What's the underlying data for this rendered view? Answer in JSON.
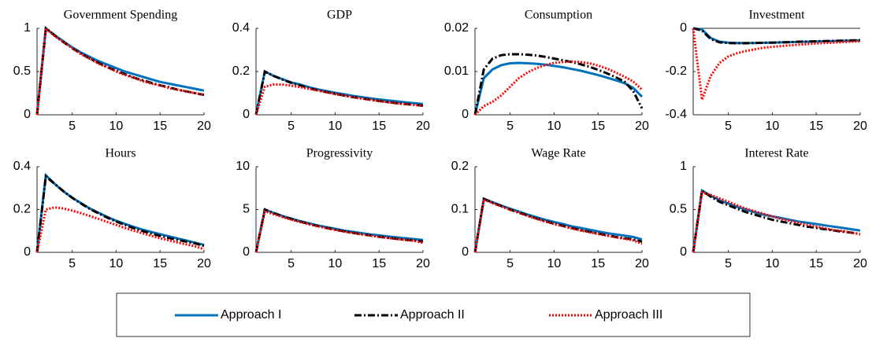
{
  "chart_data": [
    {
      "type": "line",
      "title": "Government Spending",
      "x": [
        1,
        2,
        3,
        4,
        5,
        6,
        7,
        8,
        9,
        10,
        11,
        12,
        13,
        14,
        15,
        16,
        17,
        18,
        19,
        20
      ],
      "xlim": [
        1,
        20
      ],
      "xticks": [
        5,
        10,
        15,
        20
      ],
      "ylim": [
        0,
        1
      ],
      "yticks": [
        0,
        0.5,
        1
      ],
      "series": [
        {
          "name": "Approach I",
          "color": "#0072bd",
          "dash": "solid",
          "values": [
            0,
            1,
            0.92,
            0.85,
            0.78,
            0.72,
            0.67,
            0.62,
            0.58,
            0.54,
            0.5,
            0.47,
            0.44,
            0.41,
            0.38,
            0.36,
            0.34,
            0.32,
            0.3,
            0.28
          ]
        },
        {
          "name": "Approach II",
          "color": "#000000",
          "dash": "dashdot",
          "values": [
            0,
            1,
            0.92,
            0.84,
            0.77,
            0.71,
            0.65,
            0.6,
            0.55,
            0.51,
            0.47,
            0.43,
            0.4,
            0.37,
            0.34,
            0.32,
            0.29,
            0.27,
            0.25,
            0.23
          ]
        },
        {
          "name": "Approach III",
          "color": "#ff0000",
          "dash": "dotted",
          "values": [
            0,
            1,
            0.91,
            0.84,
            0.77,
            0.7,
            0.65,
            0.59,
            0.55,
            0.5,
            0.46,
            0.43,
            0.39,
            0.36,
            0.34,
            0.31,
            0.29,
            0.27,
            0.25,
            0.23
          ]
        }
      ]
    },
    {
      "type": "line",
      "title": "GDP",
      "x": [
        1,
        2,
        3,
        4,
        5,
        6,
        7,
        8,
        9,
        10,
        11,
        12,
        13,
        14,
        15,
        16,
        17,
        18,
        19,
        20
      ],
      "xlim": [
        1,
        20
      ],
      "xticks": [
        5,
        10,
        15,
        20
      ],
      "ylim": [
        0,
        0.4
      ],
      "yticks": [
        0,
        0.2,
        0.4
      ],
      "series": [
        {
          "color": "#0072bd",
          "dash": "solid",
          "values": [
            0,
            0.2,
            0.18,
            0.165,
            0.15,
            0.14,
            0.128,
            0.118,
            0.11,
            0.102,
            0.095,
            0.088,
            0.082,
            0.076,
            0.071,
            0.066,
            0.062,
            0.058,
            0.054,
            0.05
          ]
        },
        {
          "color": "#000000",
          "dash": "dashdot",
          "values": [
            0,
            0.2,
            0.18,
            0.163,
            0.148,
            0.136,
            0.124,
            0.114,
            0.105,
            0.097,
            0.089,
            0.082,
            0.076,
            0.07,
            0.064,
            0.059,
            0.054,
            0.05,
            0.046,
            0.042
          ]
        },
        {
          "color": "#ff0000",
          "dash": "dotted",
          "values": [
            0,
            0.13,
            0.14,
            0.14,
            0.135,
            0.128,
            0.12,
            0.112,
            0.104,
            0.096,
            0.089,
            0.082,
            0.075,
            0.069,
            0.064,
            0.058,
            0.053,
            0.049,
            0.045,
            0.041
          ]
        }
      ]
    },
    {
      "type": "line",
      "title": "Consumption",
      "x": [
        1,
        2,
        3,
        4,
        5,
        6,
        7,
        8,
        9,
        10,
        11,
        12,
        13,
        14,
        15,
        16,
        17,
        18,
        19,
        20
      ],
      "xlim": [
        1,
        20
      ],
      "xticks": [
        5,
        10,
        15,
        20
      ],
      "ylim": [
        0,
        0.02
      ],
      "yticks": [
        0,
        0.01,
        0.02
      ],
      "series": [
        {
          "color": "#0072bd",
          "dash": "solid",
          "values": [
            0,
            0.0085,
            0.0105,
            0.0115,
            0.0119,
            0.012,
            0.0119,
            0.0118,
            0.0116,
            0.0113,
            0.011,
            0.0106,
            0.0102,
            0.0097,
            0.0092,
            0.0086,
            0.008,
            0.0073,
            0.0062,
            0.0042
          ]
        },
        {
          "color": "#000000",
          "dash": "dashdot",
          "values": [
            0,
            0.0105,
            0.013,
            0.0138,
            0.014,
            0.014,
            0.0139,
            0.0137,
            0.0134,
            0.013,
            0.0126,
            0.0122,
            0.0117,
            0.0111,
            0.0104,
            0.0096,
            0.0087,
            0.0077,
            0.0055,
            0.0015
          ]
        },
        {
          "color": "#ff0000",
          "dash": "dotted",
          "values": [
            0,
            0.002,
            0.003,
            0.0045,
            0.0065,
            0.0085,
            0.0098,
            0.0108,
            0.0115,
            0.012,
            0.0122,
            0.0123,
            0.0122,
            0.0119,
            0.0114,
            0.0107,
            0.0098,
            0.0088,
            0.0077,
            0.0058
          ]
        }
      ]
    },
    {
      "type": "line",
      "title": "Investment",
      "x": [
        1,
        2,
        3,
        4,
        5,
        6,
        7,
        8,
        9,
        10,
        11,
        12,
        13,
        14,
        15,
        16,
        17,
        18,
        19,
        20
      ],
      "xlim": [
        1,
        20
      ],
      "xticks": [
        5,
        10,
        15,
        20
      ],
      "ylim": [
        -0.4,
        0
      ],
      "yticks": [
        -0.4,
        -0.2,
        0
      ],
      "zero_line": true,
      "series": [
        {
          "color": "#0072bd",
          "dash": "solid",
          "values": [
            0,
            -0.005,
            -0.045,
            -0.062,
            -0.066,
            -0.068,
            -0.068,
            -0.068,
            -0.067,
            -0.066,
            -0.065,
            -0.064,
            -0.063,
            -0.062,
            -0.061,
            -0.06,
            -0.059,
            -0.058,
            -0.057,
            -0.056
          ]
        },
        {
          "color": "#000000",
          "dash": "dashdot",
          "values": [
            0,
            -0.01,
            -0.05,
            -0.065,
            -0.068,
            -0.069,
            -0.069,
            -0.068,
            -0.067,
            -0.066,
            -0.065,
            -0.064,
            -0.062,
            -0.061,
            -0.06,
            -0.059,
            -0.058,
            -0.057,
            -0.056,
            -0.055
          ]
        },
        {
          "color": "#ff0000",
          "dash": "dotted",
          "values": [
            0,
            -0.33,
            -0.22,
            -0.16,
            -0.13,
            -0.115,
            -0.105,
            -0.097,
            -0.09,
            -0.086,
            -0.082,
            -0.079,
            -0.076,
            -0.073,
            -0.07,
            -0.068,
            -0.066,
            -0.064,
            -0.062,
            -0.06
          ]
        }
      ]
    },
    {
      "type": "line",
      "title": "Hours",
      "x": [
        1,
        2,
        3,
        4,
        5,
        6,
        7,
        8,
        9,
        10,
        11,
        12,
        13,
        14,
        15,
        16,
        17,
        18,
        19,
        20
      ],
      "xlim": [
        1,
        20
      ],
      "xticks": [
        5,
        10,
        15,
        20
      ],
      "ylim": [
        0,
        0.4
      ],
      "yticks": [
        0,
        0.2,
        0.4
      ],
      "series": [
        {
          "color": "#0072bd",
          "dash": "solid",
          "values": [
            0,
            0.36,
            0.32,
            0.285,
            0.255,
            0.23,
            0.205,
            0.185,
            0.165,
            0.148,
            0.133,
            0.119,
            0.106,
            0.095,
            0.085,
            0.075,
            0.065,
            0.055,
            0.045,
            0.035
          ]
        },
        {
          "color": "#000000",
          "dash": "dashdot",
          "values": [
            0,
            0.355,
            0.32,
            0.285,
            0.255,
            0.228,
            0.203,
            0.182,
            0.162,
            0.144,
            0.128,
            0.113,
            0.1,
            0.088,
            0.077,
            0.067,
            0.058,
            0.05,
            0.042,
            0.03
          ]
        },
        {
          "color": "#ff0000",
          "dash": "dotted",
          "values": [
            0,
            0.2,
            0.21,
            0.205,
            0.195,
            0.183,
            0.17,
            0.156,
            0.142,
            0.128,
            0.114,
            0.101,
            0.089,
            0.077,
            0.066,
            0.056,
            0.046,
            0.037,
            0.028,
            0.015
          ]
        }
      ]
    },
    {
      "type": "line",
      "title": "Progressivity",
      "x": [
        1,
        2,
        3,
        4,
        5,
        6,
        7,
        8,
        9,
        10,
        11,
        12,
        13,
        14,
        15,
        16,
        17,
        18,
        19,
        20
      ],
      "xlim": [
        1,
        20
      ],
      "xticks": [
        5,
        10,
        15,
        20
      ],
      "ylim": [
        0,
        10
      ],
      "yticks": [
        0,
        5,
        10
      ],
      "series": [
        {
          "color": "#0072bd",
          "dash": "solid",
          "values": [
            0,
            5,
            4.6,
            4.25,
            3.95,
            3.65,
            3.4,
            3.15,
            2.95,
            2.75,
            2.55,
            2.4,
            2.25,
            2.1,
            1.98,
            1.86,
            1.75,
            1.65,
            1.55,
            1.45
          ]
        },
        {
          "color": "#000000",
          "dash": "dashdot",
          "values": [
            0,
            5,
            4.6,
            4.22,
            3.9,
            3.6,
            3.33,
            3.08,
            2.86,
            2.65,
            2.46,
            2.28,
            2.12,
            1.97,
            1.83,
            1.7,
            1.58,
            1.47,
            1.37,
            1.27
          ]
        },
        {
          "color": "#ff0000",
          "dash": "dotted",
          "values": [
            0,
            4.8,
            4.45,
            4.12,
            3.82,
            3.54,
            3.28,
            3.04,
            2.82,
            2.62,
            2.43,
            2.26,
            2.1,
            1.95,
            1.81,
            1.68,
            1.56,
            1.45,
            1.35,
            1.1
          ]
        }
      ]
    },
    {
      "type": "line",
      "title": "Wage Rate",
      "x": [
        1,
        2,
        3,
        4,
        5,
        6,
        7,
        8,
        9,
        10,
        11,
        12,
        13,
        14,
        15,
        16,
        17,
        18,
        19,
        20
      ],
      "xlim": [
        1,
        20
      ],
      "xticks": [
        5,
        10,
        15,
        20
      ],
      "ylim": [
        0,
        0.2
      ],
      "yticks": [
        0,
        0.1,
        0.2
      ],
      "series": [
        {
          "color": "#0072bd",
          "dash": "solid",
          "values": [
            0,
            0.125,
            0.117,
            0.109,
            0.102,
            0.095,
            0.088,
            0.082,
            0.076,
            0.071,
            0.066,
            0.061,
            0.057,
            0.053,
            0.049,
            0.045,
            0.042,
            0.039,
            0.036,
            0.03
          ]
        },
        {
          "color": "#000000",
          "dash": "dashdot",
          "values": [
            0,
            0.125,
            0.116,
            0.108,
            0.1,
            0.093,
            0.086,
            0.079,
            0.073,
            0.067,
            0.062,
            0.057,
            0.052,
            0.048,
            0.044,
            0.04,
            0.036,
            0.033,
            0.03,
            0.025
          ]
        },
        {
          "color": "#ff0000",
          "dash": "dotted",
          "values": [
            0,
            0.123,
            0.115,
            0.107,
            0.099,
            0.092,
            0.085,
            0.078,
            0.072,
            0.066,
            0.061,
            0.056,
            0.051,
            0.047,
            0.043,
            0.039,
            0.035,
            0.032,
            0.028,
            0.02
          ]
        }
      ]
    },
    {
      "type": "line",
      "title": "Interest Rate",
      "x": [
        1,
        2,
        3,
        4,
        5,
        6,
        7,
        8,
        9,
        10,
        11,
        12,
        13,
        14,
        15,
        16,
        17,
        18,
        19,
        20
      ],
      "xlim": [
        1,
        20
      ],
      "xticks": [
        5,
        10,
        15,
        20
      ],
      "ylim": [
        0,
        1
      ],
      "yticks": [
        0,
        0.5,
        1
      ],
      "series": [
        {
          "color": "#0072bd",
          "dash": "solid",
          "values": [
            0,
            0.72,
            0.66,
            0.61,
            0.57,
            0.53,
            0.5,
            0.47,
            0.44,
            0.42,
            0.4,
            0.38,
            0.36,
            0.345,
            0.33,
            0.315,
            0.3,
            0.285,
            0.27,
            0.255
          ]
        },
        {
          "color": "#000000",
          "dash": "dashdot",
          "values": [
            0,
            0.72,
            0.65,
            0.59,
            0.55,
            0.51,
            0.47,
            0.44,
            0.41,
            0.38,
            0.36,
            0.34,
            0.32,
            0.3,
            0.285,
            0.27,
            0.255,
            0.24,
            0.23,
            0.215
          ]
        },
        {
          "color": "#ff0000",
          "dash": "dotted",
          "values": [
            0,
            0.7,
            0.67,
            0.63,
            0.59,
            0.55,
            0.51,
            0.48,
            0.45,
            0.42,
            0.39,
            0.37,
            0.34,
            0.32,
            0.3,
            0.28,
            0.26,
            0.25,
            0.23,
            0.21
          ]
        }
      ]
    }
  ]
}
